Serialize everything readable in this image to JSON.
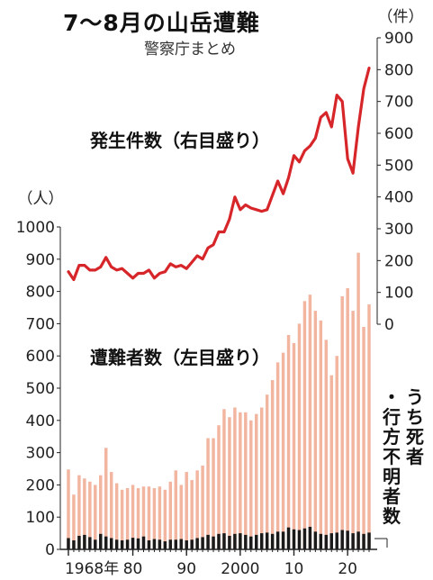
{
  "title": "7〜8月の山岳遭難",
  "source": "警察庁まとめ",
  "chart_data": {
    "type": "bar",
    "x": [
      1968,
      1969,
      1970,
      1971,
      1972,
      1973,
      1974,
      1975,
      1976,
      1977,
      1978,
      1979,
      1980,
      1981,
      1982,
      1983,
      1984,
      1985,
      1986,
      1987,
      1988,
      1989,
      1990,
      1991,
      1992,
      1993,
      1994,
      1995,
      1996,
      1997,
      1998,
      1999,
      2000,
      2001,
      2002,
      2003,
      2004,
      2005,
      2006,
      2007,
      2008,
      2009,
      2010,
      2011,
      2012,
      2013,
      2014,
      2015,
      2016,
      2017,
      2018,
      2019,
      2020,
      2021,
      2022,
      2023,
      2024
    ],
    "x_ticks": [
      {
        "x": 1968,
        "label": "1968年"
      },
      {
        "x": 1980,
        "label": "80"
      },
      {
        "x": 1990,
        "label": "90"
      },
      {
        "x": 2000,
        "label": "2000"
      },
      {
        "x": 2010,
        "label": "10"
      },
      {
        "x": 2020,
        "label": "20"
      }
    ],
    "left_axis": {
      "unit": "（人）",
      "ylim": [
        0,
        1000
      ],
      "ticks": [
        0,
        100,
        200,
        300,
        400,
        500,
        600,
        700,
        800,
        900,
        1000
      ]
    },
    "right_axis": {
      "unit": "（件）",
      "ylim": [
        0,
        900
      ],
      "ticks": [
        0,
        100,
        200,
        300,
        400,
        500,
        600,
        700,
        800,
        900
      ]
    },
    "series": [
      {
        "name": "遭難者数（左目盛り）",
        "type": "bar",
        "axis": "left",
        "color": "#f2b5a0",
        "values": [
          248,
          170,
          230,
          220,
          210,
          200,
          230,
          315,
          240,
          205,
          185,
          190,
          200,
          190,
          195,
          195,
          190,
          195,
          185,
          210,
          245,
          200,
          240,
          215,
          245,
          260,
          345,
          345,
          385,
          435,
          410,
          440,
          425,
          425,
          400,
          420,
          440,
          480,
          525,
          580,
          610,
          665,
          640,
          700,
          770,
          790,
          740,
          710,
          650,
          540,
          600,
          785,
          810,
          740,
          920,
          690,
          760
        ]
      },
      {
        "name": "うち死者・行方不明者数",
        "type": "bar",
        "axis": "left",
        "color": "#1a1a1a",
        "values": [
          35,
          28,
          42,
          45,
          38,
          30,
          48,
          40,
          35,
          30,
          28,
          30,
          36,
          34,
          40,
          28,
          32,
          30,
          25,
          30,
          30,
          32,
          28,
          30,
          35,
          38,
          45,
          40,
          48,
          50,
          42,
          48,
          50,
          45,
          40,
          45,
          50,
          52,
          48,
          55,
          55,
          68,
          62,
          60,
          65,
          70,
          55,
          48,
          45,
          50,
          52,
          60,
          58,
          50,
          55,
          48,
          52
        ]
      },
      {
        "name": "発生件数（右目盛り）",
        "type": "line",
        "axis": "right",
        "color": "#d7262a",
        "values": [
          165,
          140,
          185,
          185,
          170,
          170,
          180,
          210,
          180,
          170,
          175,
          160,
          145,
          160,
          160,
          170,
          145,
          160,
          165,
          190,
          180,
          185,
          175,
          195,
          215,
          205,
          240,
          250,
          290,
          290,
          330,
          400,
          360,
          375,
          365,
          360,
          355,
          360,
          405,
          450,
          410,
          460,
          530,
          510,
          545,
          560,
          585,
          650,
          665,
          620,
          720,
          700,
          520,
          475,
          620,
          740,
          805
        ]
      }
    ]
  }
}
